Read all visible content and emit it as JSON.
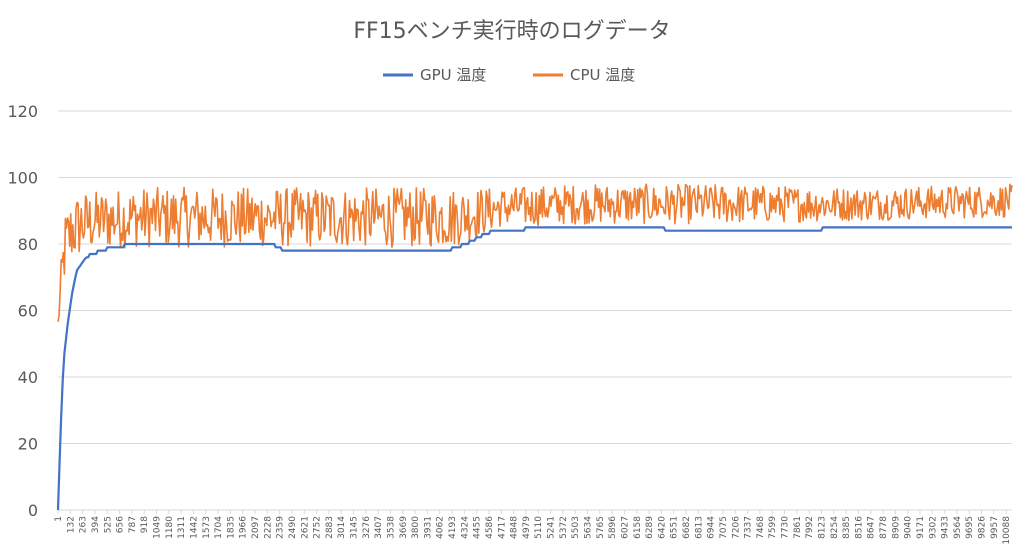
{
  "chart_data": {
    "type": "line",
    "title": "FF15ベンチ実行時のログデータ",
    "xlabel": "",
    "ylabel": "",
    "ylim": [
      0,
      120
    ],
    "yticks": [
      0,
      20,
      40,
      60,
      80,
      100,
      120
    ],
    "xlim": [
      1,
      10150
    ],
    "xticks": [
      1,
      132,
      263,
      394,
      525,
      656,
      787,
      918,
      1049,
      1180,
      1311,
      1442,
      1573,
      1704,
      1835,
      1966,
      2097,
      2228,
      2359,
      2490,
      2621,
      2752,
      2883,
      3014,
      3145,
      3276,
      3407,
      3538,
      3669,
      3800,
      3931,
      4062,
      4193,
      4324,
      4455,
      4586,
      4717,
      4848,
      4979,
      5110,
      5241,
      5372,
      5503,
      5634,
      5765,
      5896,
      6027,
      6158,
      6289,
      6420,
      6551,
      6682,
      6813,
      6944,
      7075,
      7206,
      7337,
      7468,
      7599,
      7730,
      7861,
      7992,
      8123,
      8254,
      8385,
      8516,
      8647,
      8778,
      8909,
      9040,
      9171,
      9302,
      9433,
      9564,
      9695,
      9826,
      9957,
      10088
    ],
    "grid": true,
    "legend_position": "top",
    "series": [
      {
        "name": "GPU 温度",
        "color": "#4472c4",
        "style": "smooth-step",
        "x": [
          1,
          30,
          60,
          100,
          150,
          200,
          300,
          450,
          600,
          800,
          2280,
          2330,
          2420,
          4150,
          4330,
          4480,
          4620,
          5300,
          7600,
          8650,
          10150
        ],
        "y": [
          0,
          25,
          45,
          55,
          65,
          72,
          76,
          78,
          79,
          80,
          80,
          79,
          78,
          78,
          80,
          82,
          84,
          85,
          84,
          85,
          85
        ]
      },
      {
        "name": "CPU 温度",
        "color": "#ed7d31",
        "style": "noisy",
        "x": [
          1,
          40,
          80,
          150,
          250,
          400,
          800,
          1500,
          2500,
          3500,
          4200,
          4400,
          4700,
          5500,
          7000,
          8500,
          10150
        ],
        "y": [
          56,
          70,
          80,
          84,
          86,
          87,
          88,
          88,
          88,
          88,
          88,
          89,
          91,
          92,
          92,
          92,
          93
        ],
        "band": [
          2,
          8,
          10,
          10,
          10,
          9,
          9,
          9,
          9,
          9,
          9,
          8,
          6,
          6,
          6,
          5,
          5
        ]
      }
    ]
  }
}
